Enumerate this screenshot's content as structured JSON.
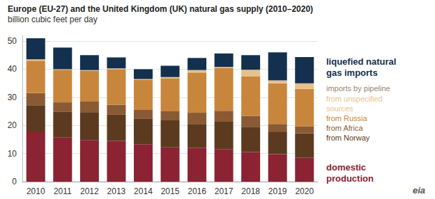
{
  "chart_data": {
    "type": "bar",
    "title": "Europe (EU-27) and the United Kingdom (UK) natural gas supply (2010–2020)",
    "subtitle": "billion cubic feet per day",
    "categories": [
      "2010",
      "2011",
      "2012",
      "2013",
      "2014",
      "2015",
      "2016",
      "2017",
      "2018",
      "2019",
      "2020"
    ],
    "stacked": true,
    "legend": "right",
    "grid": true,
    "ylim": [
      0,
      52
    ],
    "yticks": [
      0,
      10,
      20,
      30,
      40,
      50
    ],
    "series": [
      {
        "name": "domestic production",
        "color": "#8b2333",
        "values": [
          17.8,
          15.8,
          14.8,
          14.5,
          13.3,
          12.2,
          12.1,
          11.6,
          10.5,
          9.8,
          8.5
        ]
      },
      {
        "name": "from Norway",
        "color": "#5c3a20",
        "values": [
          9.4,
          9.0,
          9.7,
          9.3,
          9.2,
          9.6,
          8.4,
          9.7,
          9.0,
          8.0,
          8.7
        ]
      },
      {
        "name": "from Africa",
        "color": "#8a5a34",
        "values": [
          4.3,
          3.4,
          4.0,
          3.5,
          3.0,
          3.2,
          4.0,
          3.9,
          3.9,
          2.7,
          2.5
        ]
      },
      {
        "name": "from Russia",
        "color": "#c8863c",
        "values": [
          11.5,
          11.6,
          11.0,
          12.7,
          10.8,
          11.8,
          14.3,
          15.3,
          14.1,
          14.5,
          13.3
        ]
      },
      {
        "name": "from unspecified sources",
        "color": "#e8c08c",
        "values": [
          0.5,
          0.2,
          0.2,
          0.3,
          0.2,
          0.4,
          0.9,
          0.3,
          2.3,
          1.0,
          2.0
        ]
      },
      {
        "name": "liquefied natural gas imports",
        "color": "#13304f",
        "values": [
          7.5,
          7.7,
          5.3,
          3.9,
          3.5,
          4.0,
          4.3,
          4.8,
          5.2,
          10.0,
          9.3
        ]
      }
    ],
    "annotations": [
      {
        "text": "imports by pipeline"
      },
      {
        "text": "eia"
      }
    ]
  }
}
